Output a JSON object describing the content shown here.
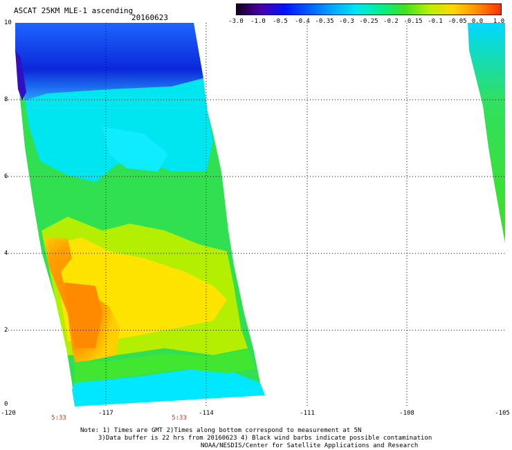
{
  "header": {
    "title": "ASCAT 25KM MLE-1 ascending",
    "date": "20160623"
  },
  "colorbar": {
    "labels": [
      "-3.0",
      "-1.0",
      "-0.5",
      "-0.4",
      "-0.35",
      "-0.3",
      "-0.25",
      "-0.2",
      "-0.15",
      "-0.1",
      "-0.05",
      "0.0",
      "1.0"
    ],
    "colors": [
      "#160020",
      "#4a00a8",
      "#0012ff",
      "#0060ff",
      "#00aaff",
      "#00e6f0",
      "#00f090",
      "#40e020",
      "#b8f000",
      "#ffd800",
      "#ff9000",
      "#ff3000"
    ]
  },
  "map": {
    "y_axis_labels": [
      "10",
      "8",
      "6",
      "4",
      "2",
      "0"
    ],
    "x_axis_labels": [
      "-120",
      "-117",
      "-114",
      "-111",
      "-108",
      "-105"
    ],
    "times": [
      "5:33",
      "5:33"
    ],
    "swath_colors": {
      "blue_dark": "#0a28d8",
      "blue": "#1e64ff",
      "cyan": "#00e6ff",
      "green": "#1ee650",
      "yellow_green": "#b4f000",
      "yellow": "#ffe600",
      "orange": "#ff8c00"
    }
  },
  "footer": {
    "line1": "Note: 1) Times are GMT 2)Times along bottom correspond to measurement at 5N",
    "line2": "3)Data buffer is 22 hrs from 20160623 4) Black wind barbs indicate possible contamination",
    "line3": "NOAA/NESDIS/Center for Satellite Applications and Research"
  }
}
